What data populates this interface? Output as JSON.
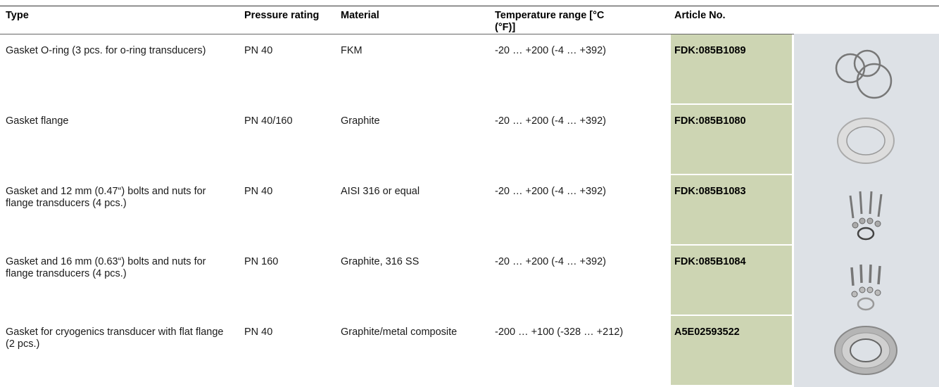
{
  "table": {
    "headers": [
      "Type",
      "Pressure rating",
      "Material",
      "Temperature range [°C (°F)]",
      "Article No."
    ],
    "rows": [
      [
        "Gasket O-ring (3 pcs. for o-ring transducers)",
        "PN 40",
        "FKM",
        "-20 … +200 (-4 … +392)",
        "FDK:085B1089"
      ],
      [
        "Gasket flange",
        "PN 40/160",
        "Graphite",
        "-20 … +200 (-4 … +392)",
        "FDK:085B1080"
      ],
      [
        "Gasket and 12 mm (0.47“) bolts and nuts for flange transducers (4 pcs.)",
        "PN 40",
        "AISI 316 or equal",
        "-20 … +200 (-4 … +392)",
        "FDK:085B1083"
      ],
      [
        "Gasket and 16 mm (0.63“) bolts and nuts for flange transducers (4 pcs.)",
        "PN 160",
        "Graphite, 316 SS",
        "-20 … +200 (-4 … +392)",
        "FDK:085B1084"
      ],
      [
        "Gasket for cryogenics transducer with flat flange (2 pcs.)",
        "PN 40",
        "Graphite/metal composite",
        "-200 … +100 (-328 … +212)",
        "A5E02593522"
      ]
    ]
  }
}
